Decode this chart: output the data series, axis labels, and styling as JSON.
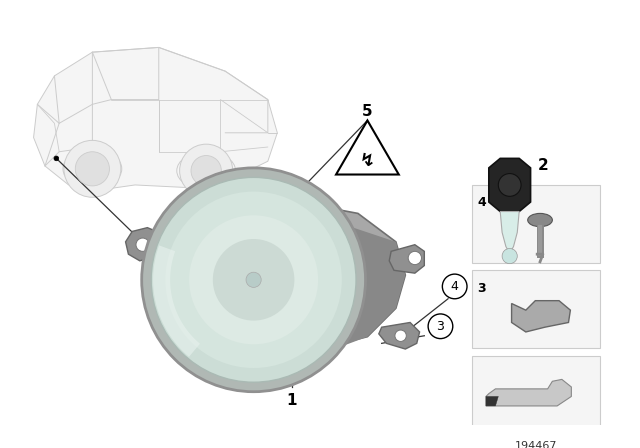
{
  "bg_color": "#ffffff",
  "part_number": "194467",
  "car_outline_color": "#cccccc",
  "car_fill_color": "#f8f8f8",
  "fog_housing_color": "#a0a0a0",
  "fog_housing_dark": "#808080",
  "lens_outer_color": "#b8c8c0",
  "lens_mid_color": "#ccddd5",
  "lens_inner_color": "#d8e8e0",
  "lens_center_color": "#c8d8d2",
  "bracket_color": "#909090",
  "bulb_dark": "#2a2a2a",
  "bulb_glass": "#d0e8e4",
  "line_color": "#000000",
  "label_fontsize": 10,
  "small_box_color": "#f5f5f5",
  "small_box_edge": "#cccccc"
}
